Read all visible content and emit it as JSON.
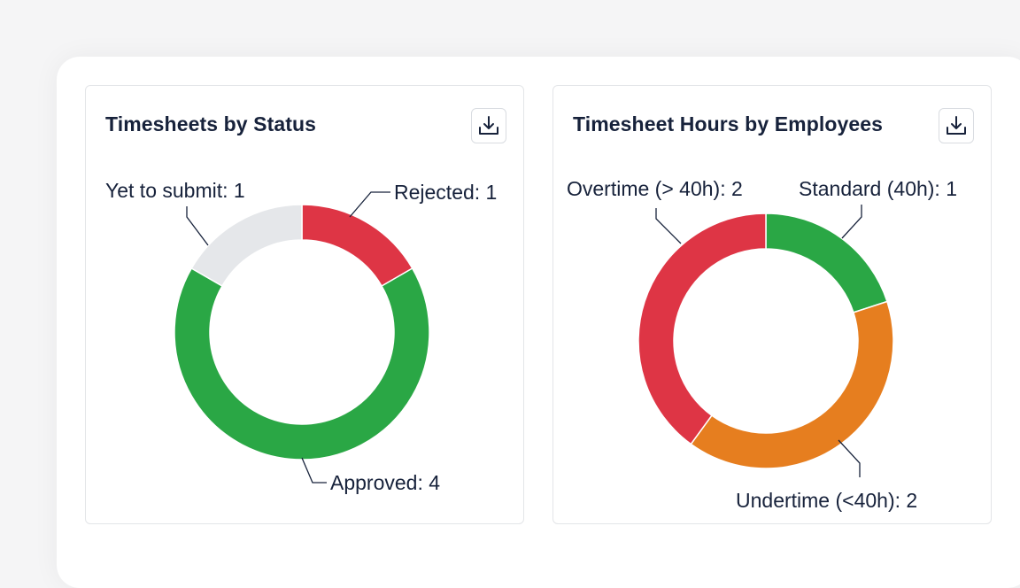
{
  "colors": {
    "approved": "#2aa745",
    "rejected": "#de3545",
    "yet_to_submit": "#e5e7ea",
    "standard": "#2aa745",
    "overtime": "#de3545",
    "undertime": "#e67e1f",
    "text": "#17223b",
    "leader": "#17223b"
  },
  "icons": {
    "download": "download-icon"
  },
  "chart_data": [
    {
      "type": "pie",
      "variant": "donut",
      "title": "Timesheets by Status",
      "slices": [
        {
          "label": "Rejected",
          "value": 1,
          "text": "Rejected: 1",
          "color": "#de3545"
        },
        {
          "label": "Approved",
          "value": 4,
          "text": "Approved: 4",
          "color": "#2aa745"
        },
        {
          "label": "Yet to submit",
          "value": 1,
          "text": "Yet to submit: 1",
          "color": "#e5e7ea"
        }
      ]
    },
    {
      "type": "pie",
      "variant": "donut",
      "title": "Timesheet Hours by Employees",
      "slices": [
        {
          "label": "Standard (40h)",
          "value": 1,
          "text": "Standard (40h): 1",
          "color": "#2aa745"
        },
        {
          "label": "Undertime (<40h)",
          "value": 2,
          "text": "Undertime (<40h): 2",
          "color": "#e67e1f"
        },
        {
          "label": "Overtime (> 40h)",
          "value": 2,
          "text": "Overtime (> 40h): 2",
          "color": "#de3545"
        }
      ]
    }
  ]
}
